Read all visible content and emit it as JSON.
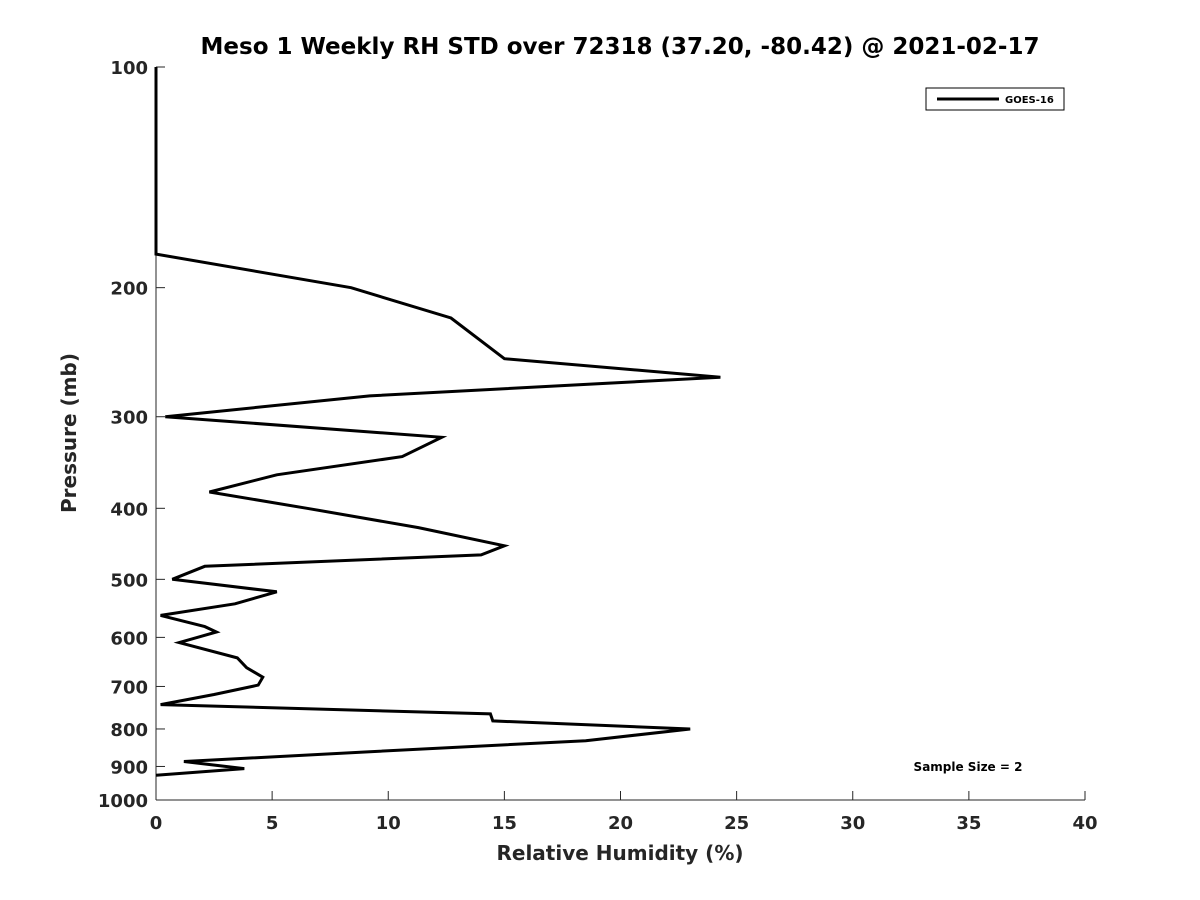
{
  "chart_data": {
    "type": "line",
    "title": "Meso 1 Weekly RH STD over 72318 (37.20, -80.42) @ 2021-02-17",
    "xlabel": "Relative Humidity (%)",
    "ylabel": "Pressure (mb)",
    "xlim": [
      0,
      40
    ],
    "ylim": [
      100,
      1000
    ],
    "y_scale": "log",
    "y_reversed": true,
    "x_ticks": [
      0,
      5,
      10,
      15,
      20,
      25,
      30,
      35,
      40
    ],
    "y_ticks": [
      100,
      200,
      300,
      400,
      500,
      600,
      700,
      800,
      900,
      1000
    ],
    "grid": false,
    "legend": {
      "placement": "top-right",
      "entries": [
        "GOES-16"
      ]
    },
    "annotation": "Sample Size = 2",
    "series": [
      {
        "name": "GOES-16",
        "color": "#000000",
        "points": [
          [
            0,
            100
          ],
          [
            0,
            180
          ],
          [
            8.4,
            200
          ],
          [
            12.7,
            220
          ],
          [
            15.0,
            250
          ],
          [
            24.3,
            265
          ],
          [
            9.2,
            281
          ],
          [
            0.4,
            300
          ],
          [
            12.3,
            320
          ],
          [
            10.6,
            340
          ],
          [
            5.2,
            360
          ],
          [
            2.3,
            380
          ],
          [
            6.5,
            400
          ],
          [
            11.3,
            425
          ],
          [
            15.0,
            450
          ],
          [
            14.0,
            463
          ],
          [
            2.1,
            480
          ],
          [
            0.7,
            500
          ],
          [
            5.2,
            520
          ],
          [
            3.4,
            540
          ],
          [
            0.2,
            560
          ],
          [
            2.1,
            580
          ],
          [
            2.6,
            590
          ],
          [
            1.0,
            610
          ],
          [
            3.5,
            640
          ],
          [
            3.9,
            660
          ],
          [
            4.6,
            680
          ],
          [
            4.4,
            697
          ],
          [
            2.5,
            718
          ],
          [
            0.2,
            741
          ],
          [
            14.4,
            763
          ],
          [
            14.5,
            780
          ],
          [
            23.0,
            800
          ],
          [
            18.5,
            830
          ],
          [
            9.0,
            860
          ],
          [
            1.2,
            886
          ],
          [
            3.8,
            906
          ],
          [
            0,
            925
          ]
        ]
      }
    ]
  }
}
